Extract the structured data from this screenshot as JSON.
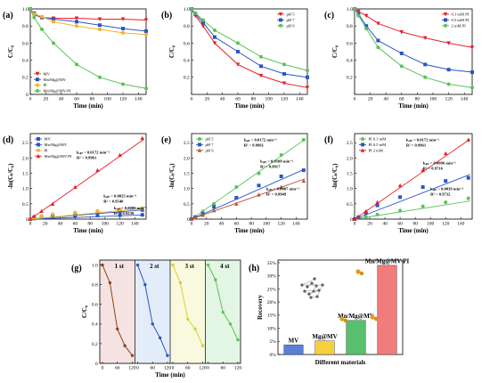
{
  "labels": {
    "time": "Time (min)",
    "cc0": "C/C₀",
    "lncc0": "-ln(Cₜ/C₀)",
    "recovery": "Recovery",
    "materials": "Different materials"
  },
  "chart_data": [
    {
      "id": "a",
      "panel_label": "(a)",
      "type": "line",
      "xlim": [
        0,
        150
      ],
      "ylim": [
        0,
        1.0
      ],
      "xticks": [
        0,
        20,
        40,
        60,
        80,
        100,
        120,
        140
      ],
      "yticks": [
        0,
        0.2,
        0.4,
        0.6,
        0.8,
        1.0
      ],
      "legend_position": "bottom-left",
      "series": [
        {
          "name": "MV",
          "color": "#e3222b",
          "marker": "v",
          "x": [
            0,
            5,
            15,
            30,
            60,
            90,
            120,
            150
          ],
          "y": [
            1.0,
            0.93,
            0.9,
            0.89,
            0.89,
            0.88,
            0.88,
            0.87
          ]
        },
        {
          "name": "Mn/Mg@MV",
          "color": "#2c55c2",
          "marker": "s",
          "x": [
            0,
            5,
            15,
            30,
            60,
            90,
            120,
            150
          ],
          "y": [
            1.0,
            0.95,
            0.9,
            0.88,
            0.85,
            0.81,
            0.77,
            0.74
          ]
        },
        {
          "name": "PI",
          "color": "#f0b429",
          "marker": "o",
          "x": [
            0,
            5,
            15,
            30,
            60,
            90,
            120,
            150
          ],
          "y": [
            1.0,
            0.94,
            0.91,
            0.85,
            0.8,
            0.76,
            0.72,
            0.7
          ]
        },
        {
          "name": "Mn/Mg@MV-PI",
          "color": "#59c35a",
          "marker": "o",
          "x": [
            0,
            5,
            15,
            30,
            60,
            90,
            120,
            150
          ],
          "y": [
            1.0,
            0.9,
            0.76,
            0.6,
            0.35,
            0.2,
            0.12,
            0.07
          ]
        }
      ]
    },
    {
      "id": "b",
      "panel_label": "(b)",
      "type": "line",
      "xlim": [
        0,
        150
      ],
      "ylim": [
        0,
        1.0
      ],
      "xticks": [
        0,
        20,
        40,
        60,
        80,
        100,
        120,
        140
      ],
      "yticks": [
        0.2,
        0.4,
        0.6,
        0.8,
        1.0
      ],
      "legend_position": "top-right",
      "series": [
        {
          "name": "pH 5",
          "color": "#e3222b",
          "marker": "v",
          "x": [
            0,
            5,
            15,
            30,
            60,
            90,
            120,
            150
          ],
          "y": [
            1.0,
            0.92,
            0.8,
            0.6,
            0.35,
            0.22,
            0.13,
            0.08
          ]
        },
        {
          "name": "pH 7",
          "color": "#2c55c2",
          "marker": "s",
          "x": [
            0,
            5,
            15,
            30,
            60,
            90,
            120,
            150
          ],
          "y": [
            1.0,
            0.94,
            0.84,
            0.67,
            0.5,
            0.33,
            0.24,
            0.2
          ]
        },
        {
          "name": "pH 9",
          "color": "#59c35a",
          "marker": "o",
          "x": [
            0,
            5,
            15,
            30,
            60,
            90,
            120,
            150
          ],
          "y": [
            1.0,
            0.95,
            0.87,
            0.75,
            0.6,
            0.44,
            0.35,
            0.28
          ]
        }
      ]
    },
    {
      "id": "c",
      "panel_label": "(c)",
      "type": "line",
      "xlim": [
        0,
        150
      ],
      "ylim": [
        0,
        1.0
      ],
      "xticks": [
        0,
        20,
        40,
        60,
        80,
        100,
        120,
        140
      ],
      "yticks": [
        0.2,
        0.4,
        0.6,
        0.8,
        1.0
      ],
      "legend_position": "top-right",
      "series": [
        {
          "name": "0.1 mM PI",
          "color": "#e3222b",
          "marker": "v",
          "x": [
            0,
            5,
            15,
            30,
            60,
            90,
            120,
            150
          ],
          "y": [
            1.0,
            0.97,
            0.92,
            0.83,
            0.73,
            0.66,
            0.6,
            0.55
          ]
        },
        {
          "name": "0.5 mM PI",
          "color": "#2c55c2",
          "marker": "s",
          "x": [
            0,
            5,
            15,
            30,
            60,
            90,
            120,
            150
          ],
          "y": [
            1.0,
            0.94,
            0.8,
            0.63,
            0.48,
            0.35,
            0.29,
            0.26
          ]
        },
        {
          "name": "2 mM PI",
          "color": "#59c35a",
          "marker": "o",
          "x": [
            0,
            5,
            15,
            30,
            60,
            90,
            120,
            150
          ],
          "y": [
            1.0,
            0.92,
            0.77,
            0.55,
            0.33,
            0.2,
            0.12,
            0.08
          ]
        }
      ]
    },
    {
      "id": "d",
      "panel_label": "(d)",
      "type": "scatter",
      "xlim": [
        0,
        155
      ],
      "ylim": [
        0,
        2.8
      ],
      "xticks": [
        0,
        20,
        40,
        60,
        80,
        100,
        120,
        140
      ],
      "yticks": [
        0,
        0.5,
        1.0,
        1.5,
        2.0,
        2.5
      ],
      "legend_position": "top-left",
      "series": [
        {
          "name": "MV",
          "color": "#2c55c2",
          "marker": "s",
          "x": [
            0,
            5,
            15,
            30,
            60,
            90,
            120,
            150
          ],
          "y": [
            0,
            0.02,
            0.05,
            0.07,
            0.1,
            0.12,
            0.13,
            0.14
          ],
          "fit_slope": 0.0009
        },
        {
          "name": "Mn/Mg@MV",
          "color": "#2c55c2",
          "marker": "s",
          "x": [
            0,
            5,
            15,
            30,
            60,
            90,
            120,
            150
          ],
          "y": [
            0,
            0.05,
            0.08,
            0.12,
            0.16,
            0.22,
            0.26,
            0.3
          ],
          "fit_slope": 0.002
        },
        {
          "name": "PI",
          "color": "#f0b429",
          "marker": "o",
          "x": [
            0,
            5,
            15,
            30,
            60,
            90,
            120,
            150
          ],
          "y": [
            0,
            0.04,
            0.1,
            0.16,
            0.22,
            0.27,
            0.31,
            0.36
          ],
          "fit_slope": 0.0023
        },
        {
          "name": "Mn/Mg@MV-PI",
          "color": "#e3222b",
          "marker": "^",
          "x": [
            0,
            5,
            15,
            30,
            60,
            90,
            120,
            150
          ],
          "y": [
            0,
            0.1,
            0.26,
            0.5,
            1.05,
            1.6,
            2.1,
            2.65
          ],
          "fit_slope": 0.0172
        }
      ],
      "annotations": [
        {
          "k": "kₒᵦₛ = 0.0172 min⁻¹",
          "r": "R² = 0.9961",
          "at": [
            62,
            2.15
          ]
        },
        {
          "k": "kₒᵦₛ = 0.0023 min⁻¹",
          "r": "R² = 0.9540",
          "at": [
            98,
            0.72
          ]
        },
        {
          "k": "kₒᵦₛ = 0.0009 min⁻¹",
          "r": "R² = 0.9239",
          "at": [
            112,
            0.32
          ]
        }
      ]
    },
    {
      "id": "e",
      "panel_label": "(e)",
      "type": "scatter",
      "xlim": [
        0,
        155
      ],
      "ylim": [
        0,
        2.8
      ],
      "xticks": [
        0,
        20,
        40,
        60,
        80,
        100,
        120,
        140
      ],
      "yticks": [
        0,
        0.5,
        1.0,
        1.5,
        2.0,
        2.5
      ],
      "legend_position": "top-left",
      "series": [
        {
          "name": "pH 5",
          "color": "#59c35a",
          "marker": "o",
          "x": [
            0,
            5,
            15,
            30,
            60,
            90,
            120,
            150
          ],
          "y": [
            0,
            0.08,
            0.25,
            0.5,
            1.05,
            1.5,
            2.1,
            2.6
          ],
          "fit_slope": 0.0172
        },
        {
          "name": "pH 7",
          "color": "#2c55c2",
          "marker": "s",
          "x": [
            0,
            5,
            15,
            30,
            60,
            90,
            120,
            150
          ],
          "y": [
            0,
            0.06,
            0.17,
            0.4,
            0.7,
            1.1,
            1.4,
            1.6
          ],
          "fit_slope": 0.0108
        },
        {
          "name": "pH 9",
          "color": "#b7583a",
          "marker": "^",
          "x": [
            0,
            5,
            15,
            30,
            60,
            90,
            120,
            150
          ],
          "y": [
            0,
            0.05,
            0.13,
            0.28,
            0.5,
            0.8,
            1.05,
            1.25
          ],
          "fit_slope": 0.0087
        }
      ],
      "annotations": [
        {
          "k": "kₒᵦₛ = 0.0172 min⁻¹",
          "r": "R² = 0.9961",
          "at": [
            70,
            2.55
          ]
        },
        {
          "k": "kₒᵦₛ = 0.0108 min⁻¹",
          "r": "R² = 0.9917",
          "at": [
            92,
            1.85
          ]
        },
        {
          "k": "kₒᵦₛ = 0.0087 min⁻¹",
          "r": "R² = 0.9949",
          "at": [
            100,
            0.95
          ]
        }
      ]
    },
    {
      "id": "f",
      "panel_label": "(f)",
      "type": "scatter",
      "xlim": [
        0,
        155
      ],
      "ylim": [
        0,
        2.8
      ],
      "xticks": [
        0,
        20,
        40,
        60,
        80,
        100,
        120,
        140
      ],
      "yticks": [
        0,
        0.5,
        1.0,
        1.5,
        2.0,
        2.5
      ],
      "legend_position": "top-left",
      "series": [
        {
          "name": "PI 0.1 mM",
          "color": "#59c35a",
          "marker": "o",
          "x": [
            0,
            5,
            15,
            30,
            60,
            90,
            120,
            150
          ],
          "y": [
            0,
            0.03,
            0.07,
            0.15,
            0.28,
            0.42,
            0.55,
            0.68
          ],
          "fit_slope": 0.0039
        },
        {
          "name": "PI 0.5 mM",
          "color": "#2c55c2",
          "marker": "s",
          "x": [
            0,
            5,
            15,
            30,
            60,
            90,
            120,
            150
          ],
          "y": [
            0,
            0.06,
            0.2,
            0.45,
            0.72,
            1.05,
            1.25,
            1.35
          ],
          "fit_slope": 0.0096
        },
        {
          "name": "PI 2 mM",
          "color": "#e3222b",
          "marker": "^",
          "x": [
            0,
            5,
            15,
            30,
            60,
            90,
            120,
            150
          ],
          "y": [
            0,
            0.08,
            0.26,
            0.55,
            1.1,
            1.6,
            2.15,
            2.6
          ],
          "fit_slope": 0.0172
        }
      ],
      "annotations": [
        {
          "k": "kₒᵦₛ = 0.0172 min⁻¹",
          "r": "R² = 0.9961",
          "at": [
            68,
            2.55
          ]
        },
        {
          "k": "kₒᵦₛ = 0.0096 min⁻¹",
          "r": "R² = 0.9716",
          "at": [
            90,
            1.8
          ]
        },
        {
          "k": "kₒᵦₛ = 0.0039 min⁻¹",
          "r": "R² = 0.9732",
          "at": [
            100,
            0.95
          ]
        }
      ]
    },
    {
      "id": "g",
      "panel_label": "(g)",
      "type": "line",
      "ylim": [
        0,
        1.05
      ],
      "yticks": [
        0,
        0.2,
        0.4,
        0.6,
        0.8,
        1.0
      ],
      "cycles": [
        {
          "label": "1 st",
          "color": "#8b4513",
          "bg": "#f2dcdc",
          "x": [
            0,
            30,
            60,
            90,
            120
          ],
          "y": [
            1.0,
            0.82,
            0.35,
            0.18,
            0.08
          ],
          "xticks": [
            0,
            60,
            120
          ]
        },
        {
          "label": "2 st",
          "color": "#2c55c2",
          "bg": "#dce8f8",
          "x": [
            0,
            30,
            60,
            90,
            120
          ],
          "y": [
            1.0,
            0.8,
            0.4,
            0.26,
            0.08
          ],
          "xticks": [
            0,
            60,
            120
          ]
        },
        {
          "label": "3 st",
          "color": "#d4d42a",
          "bg": "#f8f8d8",
          "x": [
            0,
            30,
            60,
            90,
            120
          ],
          "y": [
            1.0,
            0.82,
            0.45,
            0.35,
            0.18
          ],
          "xticks": [
            0,
            60,
            120
          ]
        },
        {
          "label": "4 st",
          "color": "#59c35a",
          "bg": "#dcf2dc",
          "x": [
            0,
            30,
            60,
            90,
            120
          ],
          "y": [
            1.0,
            0.85,
            0.52,
            0.4,
            0.24
          ],
          "xticks": [
            0,
            60,
            120
          ]
        }
      ]
    },
    {
      "id": "h",
      "panel_label": "(h)",
      "type": "bar",
      "ylim": [
        0,
        36
      ],
      "yticks": [
        0,
        5,
        10,
        15,
        20,
        25,
        30,
        35
      ],
      "ytick_suffix": "%",
      "categories": [
        "MV",
        "Mg@MV",
        "Mn/Mg@MV",
        "Mn/Mg@MV-PI"
      ],
      "values": [
        3.7,
        5.2,
        13.0,
        34.0
      ],
      "colors": [
        "#5b7fd6",
        "#f4d03f",
        "#58c06e",
        "#f27b7b"
      ]
    }
  ]
}
